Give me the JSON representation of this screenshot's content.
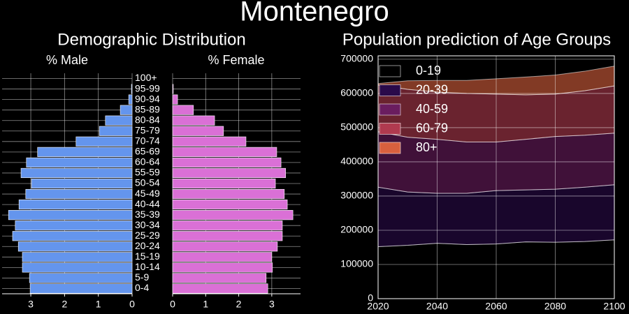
{
  "title": "Montenegro",
  "chart_data": [
    {
      "type": "pyramid",
      "title": "Demographic Distribution",
      "categories": [
        "0-4",
        "5-9",
        "10-14",
        "15-19",
        "20-24",
        "25-29",
        "30-34",
        "35-39",
        "40-44",
        "45-49",
        "50-54",
        "55-59",
        "60-64",
        "65-69",
        "70-74",
        "75-79",
        "80-84",
        "85-89",
        "90-94",
        "95-99",
        "100+"
      ],
      "series": [
        {
          "name": "% Male",
          "color": "#6495ed",
          "xlim": [
            0,
            3.85
          ],
          "xticks": [
            0,
            1,
            2,
            3
          ],
          "values": [
            3.02,
            3.04,
            3.25,
            3.25,
            3.37,
            3.54,
            3.46,
            3.66,
            3.35,
            3.15,
            2.98,
            3.29,
            3.13,
            2.8,
            1.66,
            0.97,
            0.79,
            0.35,
            0.1,
            0.02,
            0.0
          ]
        },
        {
          "name": "% Female",
          "color": "#da70d6",
          "xlim": [
            0,
            3.87
          ],
          "xticks": [
            0,
            1,
            2,
            3
          ],
          "values": [
            2.88,
            2.83,
            3.02,
            3.0,
            3.17,
            3.32,
            3.32,
            3.64,
            3.47,
            3.38,
            3.11,
            3.42,
            3.28,
            3.15,
            2.22,
            1.54,
            1.27,
            0.63,
            0.15,
            0.02,
            0.0
          ]
        }
      ],
      "grid": true
    },
    {
      "type": "area",
      "title": "Population prediction of Age Groups",
      "x": [
        2020,
        2030,
        2040,
        2050,
        2060,
        2070,
        2080,
        2090,
        2100
      ],
      "xlim": [
        2020,
        2100
      ],
      "xticks": [
        2020,
        2040,
        2060,
        2080,
        2100
      ],
      "ylim": [
        0,
        710000
      ],
      "yticks": [
        0,
        100000,
        200000,
        300000,
        400000,
        500000,
        600000,
        700000
      ],
      "grid": true,
      "legend": "upper left",
      "series": [
        {
          "name": "0-19",
          "color": "#000000",
          "values": [
            152000,
            156000,
            162000,
            158000,
            160000,
            166000,
            165000,
            167000,
            172000
          ]
        },
        {
          "name": "20-39",
          "color": "#2a0a4a",
          "values": [
            174000,
            156000,
            146000,
            150000,
            156000,
            152000,
            155000,
            159000,
            161000
          ]
        },
        {
          "name": "40-59",
          "color": "#6a1d5f",
          "values": [
            162000,
            160000,
            158000,
            150000,
            142000,
            148000,
            154000,
            152000,
            151000
          ]
        },
        {
          "name": "60-79",
          "color": "#b03a4f",
          "values": [
            137000,
            140000,
            138000,
            142000,
            140000,
            130000,
            124000,
            130000,
            138000
          ]
        },
        {
          "name": "80+",
          "color": "#d8603e",
          "values": [
            4000,
            25000,
            34000,
            38000,
            45000,
            52000,
            56000,
            57000,
            58000
          ]
        }
      ]
    }
  ]
}
